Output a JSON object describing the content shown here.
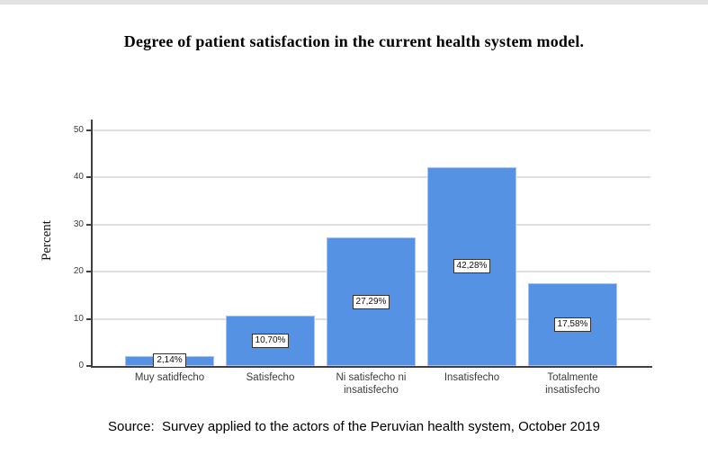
{
  "page": {
    "background": "#ffffff",
    "top_strip_color": "#e1e1e1"
  },
  "chart_data": {
    "type": "bar",
    "title": "Degree of patient satisfaction in the current health system model.",
    "ylabel": "Percent",
    "xlabel": "",
    "categories": [
      "Muy satidfecho",
      "Satisfecho",
      "Ni satisfecho ni\ninsatisfecho",
      "Insatisfecho",
      "Totalmente\ninsatisfecho"
    ],
    "values": [
      2.14,
      10.7,
      27.29,
      42.28,
      17.58
    ],
    "value_labels": [
      "2,14%",
      "10,70%",
      "27,29%",
      "42,28%",
      "17,58%"
    ],
    "yticks": [
      0,
      10,
      20,
      30,
      40,
      50
    ],
    "ylim": [
      0,
      52.3
    ],
    "grid": "horizontal",
    "legend": "none",
    "colors": {
      "bar_fill": "#5692E3",
      "bar_border": "#A5C4F0",
      "gridline": "#DEDEDE",
      "axis": "#404040",
      "value_label_bg": "#FFFFFF",
      "value_label_border": "#333333"
    }
  },
  "footer": {
    "source_note": "Source:  Survey applied to the actors of the Peruvian health system, October 2019"
  }
}
